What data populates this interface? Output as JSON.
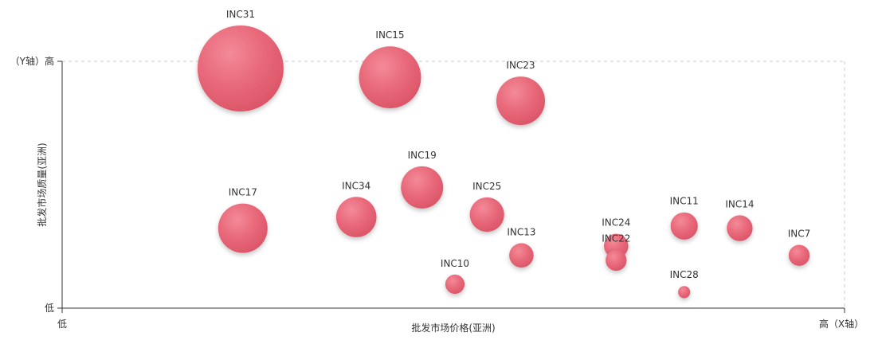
{
  "chart_data": {
    "type": "scatter",
    "xlabel": "批发市场价格(亚洲)",
    "ylabel": "批发市场质量(亚洲)",
    "x_low_label": "低",
    "x_high_label": "高（X轴）",
    "y_low_label": "低",
    "y_high_label": "（Y轴）高",
    "xlim": [
      0,
      100
    ],
    "ylim": [
      0,
      100
    ],
    "grid": false,
    "bubble_color": "#e8697a",
    "points": [
      {
        "label": "INC31",
        "x": 22.8,
        "y": 97.1,
        "size": 100
      },
      {
        "label": "INC15",
        "x": 41.9,
        "y": 93.5,
        "size": 52
      },
      {
        "label": "INC23",
        "x": 58.6,
        "y": 84.0,
        "size": 32
      },
      {
        "label": "INC17",
        "x": 23.1,
        "y": 32.4,
        "size": 33
      },
      {
        "label": "INC34",
        "x": 37.6,
        "y": 36.9,
        "size": 22
      },
      {
        "label": "INC19",
        "x": 46.0,
        "y": 48.9,
        "size": 24
      },
      {
        "label": "INC25",
        "x": 54.3,
        "y": 37.9,
        "size": 16
      },
      {
        "label": "INC13",
        "x": 58.7,
        "y": 21.4,
        "size": 8
      },
      {
        "label": "INC10",
        "x": 50.2,
        "y": 9.7,
        "size": 5
      },
      {
        "label": "INC24",
        "x": 70.8,
        "y": 25.2,
        "size": 8
      },
      {
        "label": "INC22",
        "x": 70.8,
        "y": 19.4,
        "size": 6
      },
      {
        "label": "INC11",
        "x": 79.5,
        "y": 33.3,
        "size": 10
      },
      {
        "label": "INC14",
        "x": 86.6,
        "y": 32.4,
        "size": 9
      },
      {
        "label": "INC28",
        "x": 79.5,
        "y": 6.5,
        "size": 2
      },
      {
        "label": "INC7",
        "x": 94.2,
        "y": 21.4,
        "size": 6
      }
    ]
  }
}
